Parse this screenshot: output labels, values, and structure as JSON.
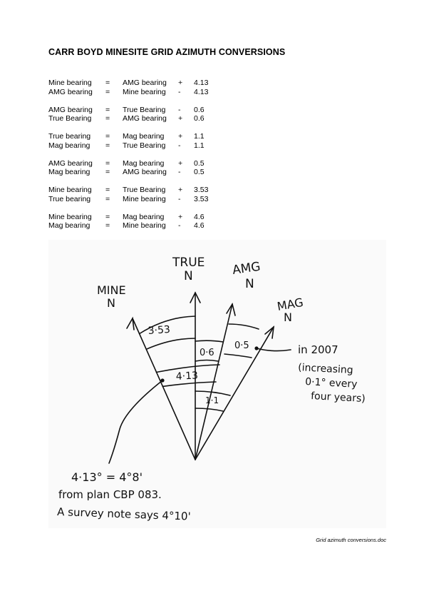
{
  "title": "CARR BOYD MINESITE GRID AZIMUTH CONVERSIONS",
  "conversions": [
    [
      [
        "Mine bearing",
        "=",
        "AMG bearing",
        "+",
        "4.13"
      ],
      [
        "AMG bearing",
        "=",
        "Mine bearing",
        "-",
        "4.13"
      ]
    ],
    [
      [
        "AMG bearing",
        "=",
        "True Bearing",
        "-",
        "0.6"
      ],
      [
        "True Bearing",
        "=",
        "AMG bearing",
        "+",
        "0.6"
      ]
    ],
    [
      [
        "True bearing",
        "=",
        "Mag bearing",
        "+",
        "1.1"
      ],
      [
        "Mag bearing",
        "=",
        "True Bearing",
        "-",
        "1.1"
      ]
    ],
    [
      [
        "AMG bearing",
        "=",
        "Mag bearing",
        "+",
        "0.5"
      ],
      [
        "Mag bearing",
        "=",
        "AMG bearing",
        "-",
        "0.5"
      ]
    ],
    [
      [
        "Mine bearing",
        "=",
        "True Bearing",
        "+",
        "3.53"
      ],
      [
        "True bearing",
        "=",
        "Mine bearing",
        "-",
        "3.53"
      ]
    ],
    [
      [
        "Mine bearing",
        "=",
        "Mag bearing",
        "+",
        "4.6"
      ],
      [
        "Mag bearing",
        "=",
        "Mine bearing",
        "-",
        "4.6"
      ]
    ]
  ],
  "diagram": {
    "true_label": "TRUE",
    "true_n": "N",
    "amg_label": "AMG",
    "amg_n": "N",
    "mine_label": "MINE",
    "mine_n": "N",
    "mag_label": "MAG",
    "mag_n": "N",
    "arc_353": "3·53",
    "arc_413": "4·13",
    "arc_06": "0·6",
    "arc_05": "0·5",
    "arc_11": "1·1",
    "note_2007": [
      "in 2007",
      "(increasing",
      "0·1° every",
      "four years)"
    ],
    "note_bottom": [
      "4·13° = 4°8'",
      "from plan CBP 083.",
      "A survey note says 4°10'"
    ]
  },
  "footer": "Grid azimuth conversions.doc"
}
